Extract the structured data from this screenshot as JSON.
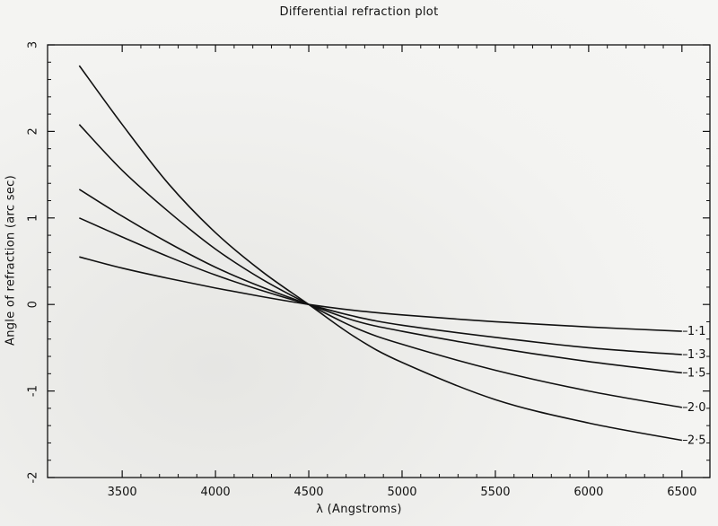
{
  "chart_data": {
    "type": "line",
    "title": "Differential refraction plot",
    "xlabel": "λ (Angstroms)",
    "ylabel": "Angle of refraction (arc sec)",
    "xlim": [
      3100,
      6650
    ],
    "ylim": [
      -2,
      3
    ],
    "x_ticks": [
      3500,
      4000,
      4500,
      5000,
      5500,
      6000,
      6500
    ],
    "y_ticks": [
      -2,
      -1,
      0,
      1,
      2,
      3
    ],
    "grid": false,
    "legend": "none",
    "series": [
      {
        "name": "1·1",
        "x": [
          3270,
          3500,
          3750,
          4000,
          4250,
          4500,
          4750,
          5000,
          5500,
          6000,
          6500
        ],
        "y": [
          0.55,
          0.42,
          0.3,
          0.19,
          0.09,
          0.0,
          -0.07,
          -0.12,
          -0.2,
          -0.26,
          -0.31
        ]
      },
      {
        "name": "1·3",
        "x": [
          3270,
          3500,
          3750,
          4000,
          4250,
          4500,
          4750,
          5000,
          5500,
          6000,
          6500
        ],
        "y": [
          1.0,
          0.78,
          0.55,
          0.34,
          0.16,
          0.0,
          -0.14,
          -0.24,
          -0.38,
          -0.5,
          -0.58
        ]
      },
      {
        "name": "1·5",
        "x": [
          3270,
          3500,
          3750,
          4000,
          4250,
          4500,
          4750,
          5000,
          5500,
          6000,
          6500
        ],
        "y": [
          1.33,
          1.02,
          0.71,
          0.43,
          0.2,
          0.0,
          -0.19,
          -0.31,
          -0.5,
          -0.66,
          -0.79
        ]
      },
      {
        "name": "2·0",
        "x": [
          3270,
          3500,
          3750,
          4000,
          4250,
          4500,
          4750,
          5000,
          5500,
          6000,
          6500
        ],
        "y": [
          2.08,
          1.55,
          1.07,
          0.64,
          0.29,
          0.0,
          -0.27,
          -0.46,
          -0.76,
          -1.0,
          -1.19
        ]
      },
      {
        "name": "2·5",
        "x": [
          3270,
          3500,
          3750,
          4000,
          4250,
          4500,
          4750,
          5000,
          5500,
          6000,
          6500
        ],
        "y": [
          2.76,
          2.08,
          1.39,
          0.83,
          0.38,
          0.0,
          -0.38,
          -0.67,
          -1.1,
          -1.37,
          -1.57
        ]
      }
    ],
    "colors": {
      "line": "#111111",
      "background": "#f2f2f0"
    }
  }
}
